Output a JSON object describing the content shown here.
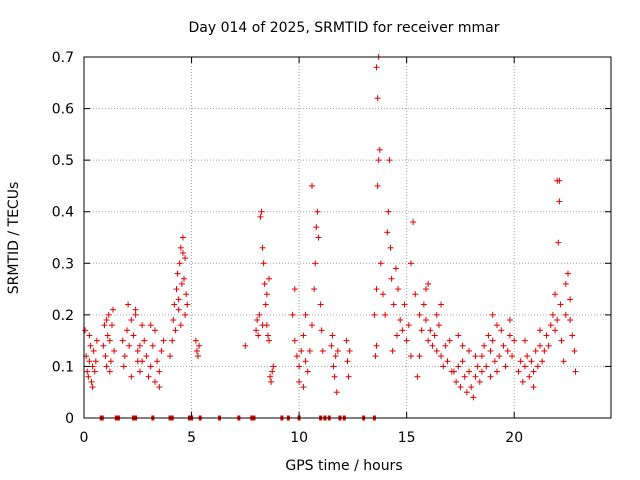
{
  "chart_data": {
    "type": "scatter",
    "title": "Day 014 of 2025, SRMTID for receiver mmar",
    "xlabel": "GPS time / hours",
    "ylabel": "SRMTID / TECUs",
    "xlim": [
      0,
      24.5
    ],
    "ylim": [
      0,
      0.7
    ],
    "xticks": [
      0,
      5,
      10,
      15,
      20
    ],
    "xtick_labels": [
      "0",
      "5",
      "10",
      "15",
      "20"
    ],
    "yticks": [
      0,
      0.1,
      0.2,
      0.3,
      0.4,
      0.5,
      0.6,
      0.7
    ],
    "ytick_labels": [
      "0",
      "0.1",
      "0.2",
      "0.3",
      "0.4",
      "0.5",
      "0.6",
      "0.7"
    ],
    "grid": true,
    "marker": "+",
    "color": "#e00000",
    "series": [
      {
        "name": "SRMTID",
        "points": [
          [
            0.05,
            0.17
          ],
          [
            0.1,
            0.12
          ],
          [
            0.15,
            0.09
          ],
          [
            0.2,
            0.08
          ],
          [
            0.25,
            0.11
          ],
          [
            0.3,
            0.14
          ],
          [
            0.35,
            0.07
          ],
          [
            0.4,
            0.1
          ],
          [
            0.45,
            0.13
          ],
          [
            0.5,
            0.09
          ],
          [
            0.55,
            0.11
          ],
          [
            0.6,
            0.15
          ],
          [
            0.25,
            0.16
          ],
          [
            0.4,
            0.06
          ],
          [
            0.9,
            0.14
          ],
          [
            0.95,
            0.18
          ],
          [
            1.0,
            0.12
          ],
          [
            1.05,
            0.1
          ],
          [
            1.1,
            0.16
          ],
          [
            1.15,
            0.2
          ],
          [
            1.2,
            0.15
          ],
          [
            1.25,
            0.11
          ],
          [
            1.3,
            0.18
          ],
          [
            1.35,
            0.21
          ],
          [
            1.4,
            0.13
          ],
          [
            1.05,
            0.19
          ],
          [
            1.2,
            0.09
          ],
          [
            1.8,
            0.15
          ],
          [
            1.9,
            0.12
          ],
          [
            2.0,
            0.17
          ],
          [
            2.1,
            0.14
          ],
          [
            2.2,
            0.19
          ],
          [
            2.3,
            0.16
          ],
          [
            2.4,
            0.21
          ],
          [
            2.5,
            0.11
          ],
          [
            2.6,
            0.14
          ],
          [
            2.7,
            0.18
          ],
          [
            2.2,
            0.08
          ],
          [
            2.4,
            0.2
          ],
          [
            1.85,
            0.1
          ],
          [
            2.05,
            0.22
          ],
          [
            2.5,
            0.13
          ],
          [
            2.6,
            0.09
          ],
          [
            2.7,
            0.11
          ],
          [
            2.8,
            0.15
          ],
          [
            2.9,
            0.12
          ],
          [
            3.0,
            0.08
          ],
          [
            3.1,
            0.1
          ],
          [
            3.2,
            0.14
          ],
          [
            3.3,
            0.17
          ],
          [
            3.4,
            0.11
          ],
          [
            3.5,
            0.09
          ],
          [
            3.6,
            0.13
          ],
          [
            3.7,
            0.15
          ],
          [
            3.3,
            0.07
          ],
          [
            3.5,
            0.06
          ],
          [
            3.1,
            0.18
          ],
          [
            4.0,
            0.12
          ],
          [
            4.1,
            0.15
          ],
          [
            4.15,
            0.19
          ],
          [
            4.2,
            0.22
          ],
          [
            4.25,
            0.17
          ],
          [
            4.3,
            0.25
          ],
          [
            4.35,
            0.28
          ],
          [
            4.4,
            0.21
          ],
          [
            4.45,
            0.3
          ],
          [
            4.5,
            0.33
          ],
          [
            4.55,
            0.26
          ],
          [
            4.6,
            0.32
          ],
          [
            4.65,
            0.27
          ],
          [
            4.7,
            0.2
          ],
          [
            4.75,
            0.24
          ],
          [
            4.8,
            0.22
          ],
          [
            4.6,
            0.35
          ],
          [
            4.7,
            0.31
          ],
          [
            4.5,
            0.18
          ],
          [
            4.4,
            0.23
          ],
          [
            5.2,
            0.15
          ],
          [
            5.25,
            0.13
          ],
          [
            5.3,
            0.12
          ],
          [
            5.35,
            0.14
          ],
          [
            7.5,
            0.14
          ],
          [
            8.0,
            0.17
          ],
          [
            8.05,
            0.19
          ],
          [
            8.1,
            0.16
          ],
          [
            8.15,
            0.2
          ],
          [
            8.2,
            0.39
          ],
          [
            8.25,
            0.4
          ],
          [
            8.3,
            0.33
          ],
          [
            8.35,
            0.3
          ],
          [
            8.4,
            0.26
          ],
          [
            8.45,
            0.22
          ],
          [
            8.5,
            0.18
          ],
          [
            8.55,
            0.16
          ],
          [
            8.6,
            0.15
          ],
          [
            8.65,
            0.08
          ],
          [
            8.7,
            0.07
          ],
          [
            8.75,
            0.09
          ],
          [
            8.8,
            0.1
          ],
          [
            8.5,
            0.24
          ],
          [
            8.6,
            0.27
          ],
          [
            8.3,
            0.18
          ],
          [
            9.7,
            0.2
          ],
          [
            9.8,
            0.15
          ],
          [
            9.9,
            0.12
          ],
          [
            10.0,
            0.1
          ],
          [
            10.1,
            0.13
          ],
          [
            10.2,
            0.16
          ],
          [
            10.3,
            0.11
          ],
          [
            10.4,
            0.09
          ],
          [
            10.5,
            0.13
          ],
          [
            10.6,
            0.18
          ],
          [
            10.7,
            0.25
          ],
          [
            10.75,
            0.3
          ],
          [
            10.8,
            0.37
          ],
          [
            10.85,
            0.4
          ],
          [
            10.6,
            0.45
          ],
          [
            10.9,
            0.35
          ],
          [
            11.0,
            0.22
          ],
          [
            11.05,
            0.17
          ],
          [
            11.1,
            0.13
          ],
          [
            9.8,
            0.25
          ],
          [
            10.0,
            0.07
          ],
          [
            10.3,
            0.2
          ],
          [
            10.2,
            0.06
          ],
          [
            11.5,
            0.14
          ],
          [
            11.6,
            0.1
          ],
          [
            11.65,
            0.08
          ],
          [
            11.7,
            0.12
          ],
          [
            11.75,
            0.05
          ],
          [
            11.8,
            0.13
          ],
          [
            11.55,
            0.16
          ],
          [
            12.2,
            0.15
          ],
          [
            12.25,
            0.11
          ],
          [
            12.3,
            0.08
          ],
          [
            12.35,
            0.13
          ],
          [
            13.5,
            0.2
          ],
          [
            13.6,
            0.25
          ],
          [
            13.65,
            0.45
          ],
          [
            13.7,
            0.5
          ],
          [
            13.75,
            0.52
          ],
          [
            13.6,
            0.68
          ],
          [
            13.7,
            0.7
          ],
          [
            13.65,
            0.62
          ],
          [
            13.8,
            0.3
          ],
          [
            13.9,
            0.24
          ],
          [
            14.0,
            0.2
          ],
          [
            14.1,
            0.36
          ],
          [
            14.15,
            0.4
          ],
          [
            14.2,
            0.5
          ],
          [
            14.25,
            0.33
          ],
          [
            14.3,
            0.27
          ],
          [
            14.4,
            0.22
          ],
          [
            14.5,
            0.29
          ],
          [
            14.6,
            0.25
          ],
          [
            14.7,
            0.19
          ],
          [
            14.8,
            0.17
          ],
          [
            14.9,
            0.22
          ],
          [
            15.0,
            0.15
          ],
          [
            15.1,
            0.18
          ],
          [
            15.2,
            0.12
          ],
          [
            13.55,
            0.12
          ],
          [
            13.6,
            0.14
          ],
          [
            14.35,
            0.13
          ],
          [
            14.55,
            0.16
          ],
          [
            15.2,
            0.3
          ],
          [
            15.3,
            0.38
          ],
          [
            15.4,
            0.24
          ],
          [
            15.5,
            0.08
          ],
          [
            15.6,
            0.2
          ],
          [
            15.7,
            0.17
          ],
          [
            15.8,
            0.22
          ],
          [
            15.9,
            0.19
          ],
          [
            16.0,
            0.15
          ],
          [
            16.1,
            0.17
          ],
          [
            16.2,
            0.14
          ],
          [
            16.3,
            0.16
          ],
          [
            16.4,
            0.13
          ],
          [
            16.5,
            0.18
          ],
          [
            16.6,
            0.12
          ],
          [
            16.7,
            0.1
          ],
          [
            16.8,
            0.14
          ],
          [
            16.9,
            0.11
          ],
          [
            17.0,
            0.15
          ],
          [
            17.1,
            0.09
          ],
          [
            16.0,
            0.26
          ],
          [
            16.4,
            0.2
          ],
          [
            16.6,
            0.22
          ],
          [
            15.6,
            0.12
          ],
          [
            15.9,
            0.25
          ],
          [
            17.2,
            0.09
          ],
          [
            17.3,
            0.07
          ],
          [
            17.4,
            0.1
          ],
          [
            17.5,
            0.06
          ],
          [
            17.6,
            0.11
          ],
          [
            17.7,
            0.08
          ],
          [
            17.8,
            0.05
          ],
          [
            17.9,
            0.09
          ],
          [
            18.0,
            0.06
          ],
          [
            18.1,
            0.04
          ],
          [
            18.2,
            0.08
          ],
          [
            18.3,
            0.1
          ],
          [
            18.4,
            0.07
          ],
          [
            18.5,
            0.09
          ],
          [
            17.6,
            0.14
          ],
          [
            17.9,
            0.13
          ],
          [
            18.2,
            0.12
          ],
          [
            17.4,
            0.16
          ],
          [
            18.5,
            0.12
          ],
          [
            18.6,
            0.14
          ],
          [
            18.7,
            0.1
          ],
          [
            18.8,
            0.16
          ],
          [
            18.9,
            0.13
          ],
          [
            19.0,
            0.15
          ],
          [
            19.1,
            0.11
          ],
          [
            19.2,
            0.09
          ],
          [
            19.3,
            0.12
          ],
          [
            19.4,
            0.17
          ],
          [
            19.5,
            0.14
          ],
          [
            19.6,
            0.1
          ],
          [
            19.7,
            0.13
          ],
          [
            19.8,
            0.16
          ],
          [
            19.9,
            0.12
          ],
          [
            20.0,
            0.15
          ],
          [
            19.0,
            0.2
          ],
          [
            19.2,
            0.18
          ],
          [
            19.8,
            0.19
          ],
          [
            18.9,
            0.08
          ],
          [
            20.2,
            0.09
          ],
          [
            20.3,
            0.11
          ],
          [
            20.4,
            0.07
          ],
          [
            20.5,
            0.1
          ],
          [
            20.6,
            0.12
          ],
          [
            20.7,
            0.08
          ],
          [
            20.8,
            0.11
          ],
          [
            20.9,
            0.09
          ],
          [
            21.0,
            0.13
          ],
          [
            21.1,
            0.1
          ],
          [
            21.2,
            0.14
          ],
          [
            21.3,
            0.11
          ],
          [
            20.5,
            0.15
          ],
          [
            20.9,
            0.06
          ],
          [
            21.2,
            0.17
          ],
          [
            21.4,
            0.13
          ],
          [
            21.5,
            0.16
          ],
          [
            21.6,
            0.14
          ],
          [
            21.7,
            0.18
          ],
          [
            21.8,
            0.2
          ],
          [
            21.9,
            0.17
          ],
          [
            22.0,
            0.19
          ],
          [
            22.05,
            0.34
          ],
          [
            22.1,
            0.42
          ],
          [
            22.0,
            0.46
          ],
          [
            22.1,
            0.46
          ],
          [
            22.15,
            0.22
          ],
          [
            22.2,
            0.15
          ],
          [
            22.3,
            0.11
          ],
          [
            22.4,
            0.2
          ],
          [
            22.5,
            0.28
          ],
          [
            22.6,
            0.23
          ],
          [
            22.7,
            0.16
          ],
          [
            22.8,
            0.13
          ],
          [
            22.85,
            0.09
          ],
          [
            22.4,
            0.26
          ],
          [
            22.6,
            0.19
          ],
          [
            21.9,
            0.24
          ],
          [
            0.8,
            0.0
          ],
          [
            0.85,
            0.0
          ],
          [
            1.5,
            0.0
          ],
          [
            1.6,
            0.0
          ],
          [
            2.3,
            0.0
          ],
          [
            2.4,
            0.0
          ],
          [
            3.2,
            0.0
          ],
          [
            4.0,
            0.0
          ],
          [
            4.1,
            0.0
          ],
          [
            4.9,
            0.0
          ],
          [
            5.0,
            0.0
          ],
          [
            5.4,
            0.0
          ],
          [
            6.3,
            0.0
          ],
          [
            7.2,
            0.0
          ],
          [
            7.8,
            0.0
          ],
          [
            7.9,
            0.0
          ],
          [
            9.2,
            0.0
          ],
          [
            9.5,
            0.0
          ],
          [
            10.0,
            0.0
          ],
          [
            11.0,
            0.0
          ],
          [
            11.2,
            0.0
          ],
          [
            11.4,
            0.0
          ],
          [
            11.9,
            0.0
          ],
          [
            12.1,
            0.0
          ],
          [
            13.0,
            0.0
          ],
          [
            13.5,
            0.0
          ]
        ]
      }
    ]
  }
}
